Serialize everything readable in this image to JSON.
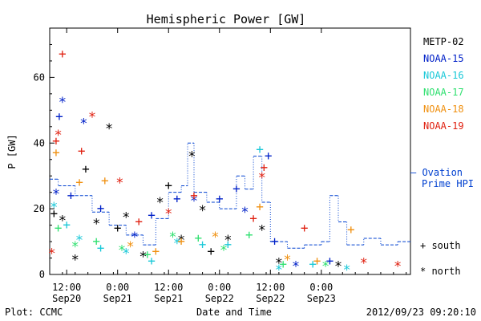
{
  "chart_data": {
    "type": "scatter",
    "title": "Hemispheric Power [GW]",
    "ylabel": "P [GW]",
    "xlabel": "Date and Time",
    "ylim": [
      0,
      75
    ],
    "x_start": "2012-09-20 08:00",
    "x_end": "2012-09-23 21:00",
    "grid": false,
    "legend_position": "right",
    "y_ticks": [
      0,
      20,
      40,
      60
    ],
    "x_ticks": [
      {
        "time": "2012-09-20 12:00",
        "line1": "12:00",
        "line2": "Sep20"
      },
      {
        "time": "2012-09-21 00:00",
        "line1": "0:00",
        "line2": "Sep21"
      },
      {
        "time": "2012-09-21 12:00",
        "line1": "12:00",
        "line2": "Sep21"
      },
      {
        "time": "2012-09-22 00:00",
        "line1": "0:00",
        "line2": "Sep22"
      },
      {
        "time": "2012-09-22 12:00",
        "line1": "12:00",
        "line2": "Sep22"
      },
      {
        "time": "2012-09-23 00:00",
        "line1": "0:00",
        "line2": "Sep23"
      }
    ],
    "footer_left": "Plot: CCMC",
    "footer_right": "2012/09/23 09:20:10",
    "marker_legend": {
      "south": "+ south",
      "north": "* north"
    },
    "ovation_label_1": "– Ovation",
    "ovation_label_2": "Prime HPI",
    "series": [
      {
        "name": "METP-02",
        "color": "#000000",
        "points": [
          {
            "x": "2012-09-20 09:00",
            "y": 18.5,
            "m": "+"
          },
          {
            "x": "2012-09-20 11:00",
            "y": 17,
            "m": "*"
          },
          {
            "x": "2012-09-20 14:00",
            "y": 5,
            "m": "*"
          },
          {
            "x": "2012-09-20 16:30",
            "y": 32,
            "m": "+"
          },
          {
            "x": "2012-09-20 19:00",
            "y": 16,
            "m": "*"
          },
          {
            "x": "2012-09-20 22:00",
            "y": 45,
            "m": "*"
          },
          {
            "x": "2012-09-21 00:00",
            "y": 14,
            "m": "+"
          },
          {
            "x": "2012-09-21 02:00",
            "y": 18,
            "m": "*"
          },
          {
            "x": "2012-09-21 06:00",
            "y": 6,
            "m": "*"
          },
          {
            "x": "2012-09-21 10:00",
            "y": 22.5,
            "m": "*"
          },
          {
            "x": "2012-09-21 12:00",
            "y": 27,
            "m": "+"
          },
          {
            "x": "2012-09-21 15:00",
            "y": 11,
            "m": "*"
          },
          {
            "x": "2012-09-21 17:30",
            "y": 36.5,
            "m": "*"
          },
          {
            "x": "2012-09-21 20:00",
            "y": 20,
            "m": "*"
          },
          {
            "x": "2012-09-21 22:00",
            "y": 7,
            "m": "+"
          },
          {
            "x": "2012-09-22 02:00",
            "y": 11,
            "m": "*"
          },
          {
            "x": "2012-09-22 10:00",
            "y": 14,
            "m": "*"
          },
          {
            "x": "2012-09-22 14:00",
            "y": 4,
            "m": "*"
          },
          {
            "x": "2012-09-23 04:00",
            "y": 3,
            "m": "*"
          }
        ]
      },
      {
        "name": "NOAA-15",
        "color": "#0020c8",
        "points": [
          {
            "x": "2012-09-20 09:30",
            "y": 25,
            "m": "*"
          },
          {
            "x": "2012-09-20 10:15",
            "y": 48,
            "m": "+"
          },
          {
            "x": "2012-09-20 11:00",
            "y": 53,
            "m": "*"
          },
          {
            "x": "2012-09-20 13:00",
            "y": 24,
            "m": "+"
          },
          {
            "x": "2012-09-20 16:00",
            "y": 46.5,
            "m": "*"
          },
          {
            "x": "2012-09-20 20:00",
            "y": 20,
            "m": "+"
          },
          {
            "x": "2012-09-21 04:00",
            "y": 12,
            "m": "*"
          },
          {
            "x": "2012-09-21 08:00",
            "y": 18,
            "m": "+"
          },
          {
            "x": "2012-09-21 14:00",
            "y": 23,
            "m": "+"
          },
          {
            "x": "2012-09-21 18:00",
            "y": 23,
            "m": "*"
          },
          {
            "x": "2012-09-22 00:00",
            "y": 23,
            "m": "+"
          },
          {
            "x": "2012-09-22 04:00",
            "y": 26,
            "m": "+"
          },
          {
            "x": "2012-09-22 06:00",
            "y": 19.5,
            "m": "*"
          },
          {
            "x": "2012-09-22 11:30",
            "y": 36,
            "m": "+"
          },
          {
            "x": "2012-09-22 13:00",
            "y": 10,
            "m": "+"
          },
          {
            "x": "2012-09-22 18:00",
            "y": 3,
            "m": "*"
          },
          {
            "x": "2012-09-23 02:00",
            "y": 4,
            "m": "+"
          }
        ]
      },
      {
        "name": "NOAA-16",
        "color": "#18c8d8",
        "points": [
          {
            "x": "2012-09-20 09:00",
            "y": 21,
            "m": "*"
          },
          {
            "x": "2012-09-20 12:00",
            "y": 15,
            "m": "+"
          },
          {
            "x": "2012-09-20 15:00",
            "y": 11,
            "m": "*"
          },
          {
            "x": "2012-09-20 20:00",
            "y": 8,
            "m": "+"
          },
          {
            "x": "2012-09-21 02:00",
            "y": 7,
            "m": "*"
          },
          {
            "x": "2012-09-21 08:00",
            "y": 4,
            "m": "+"
          },
          {
            "x": "2012-09-21 14:00",
            "y": 10,
            "m": "*"
          },
          {
            "x": "2012-09-21 20:00",
            "y": 9,
            "m": "+"
          },
          {
            "x": "2012-09-22 02:00",
            "y": 9,
            "m": "+"
          },
          {
            "x": "2012-09-22 09:30",
            "y": 38,
            "m": "+"
          },
          {
            "x": "2012-09-22 14:00",
            "y": 2,
            "m": "*"
          },
          {
            "x": "2012-09-22 22:00",
            "y": 3,
            "m": "+"
          },
          {
            "x": "2012-09-23 06:00",
            "y": 2,
            "m": "*"
          }
        ]
      },
      {
        "name": "NOAA-17",
        "color": "#30e070",
        "points": [
          {
            "x": "2012-09-20 10:00",
            "y": 14,
            "m": "+"
          },
          {
            "x": "2012-09-20 14:00",
            "y": 9,
            "m": "*"
          },
          {
            "x": "2012-09-20 19:00",
            "y": 10,
            "m": "+"
          },
          {
            "x": "2012-09-21 01:00",
            "y": 8,
            "m": "*"
          },
          {
            "x": "2012-09-21 07:00",
            "y": 6,
            "m": "+"
          },
          {
            "x": "2012-09-21 13:00",
            "y": 12,
            "m": "*"
          },
          {
            "x": "2012-09-21 19:00",
            "y": 11,
            "m": "+"
          },
          {
            "x": "2012-09-22 01:00",
            "y": 8,
            "m": "*"
          },
          {
            "x": "2012-09-22 07:00",
            "y": 12,
            "m": "+"
          },
          {
            "x": "2012-09-22 15:00",
            "y": 3,
            "m": "+"
          },
          {
            "x": "2012-09-23 01:00",
            "y": 3,
            "m": "*"
          }
        ]
      },
      {
        "name": "NOAA-18",
        "color": "#f09010",
        "points": [
          {
            "x": "2012-09-20 09:30",
            "y": 37,
            "m": "+"
          },
          {
            "x": "2012-09-20 15:00",
            "y": 28,
            "m": "+"
          },
          {
            "x": "2012-09-20 21:00",
            "y": 28.5,
            "m": "+"
          },
          {
            "x": "2012-09-21 03:00",
            "y": 9,
            "m": "*"
          },
          {
            "x": "2012-09-21 09:00",
            "y": 7,
            "m": "+"
          },
          {
            "x": "2012-09-21 15:00",
            "y": 10,
            "m": "+"
          },
          {
            "x": "2012-09-21 23:00",
            "y": 12,
            "m": "*"
          },
          {
            "x": "2012-09-22 09:30",
            "y": 20.5,
            "m": "+"
          },
          {
            "x": "2012-09-22 16:00",
            "y": 5,
            "m": "*"
          },
          {
            "x": "2012-09-22 23:00",
            "y": 4,
            "m": "+"
          },
          {
            "x": "2012-09-23 07:00",
            "y": 13.5,
            "m": "+"
          }
        ]
      },
      {
        "name": "NOAA-19",
        "color": "#e02010",
        "points": [
          {
            "x": "2012-09-20 08:30",
            "y": 7,
            "m": "*"
          },
          {
            "x": "2012-09-20 09:30",
            "y": 40.5,
            "m": "+"
          },
          {
            "x": "2012-09-20 10:00",
            "y": 43,
            "m": "*"
          },
          {
            "x": "2012-09-20 11:00",
            "y": 67,
            "m": "+"
          },
          {
            "x": "2012-09-20 15:30",
            "y": 37.5,
            "m": "+"
          },
          {
            "x": "2012-09-20 18:00",
            "y": 48.5,
            "m": "*"
          },
          {
            "x": "2012-09-21 00:30",
            "y": 28.5,
            "m": "*"
          },
          {
            "x": "2012-09-21 05:00",
            "y": 16,
            "m": "+"
          },
          {
            "x": "2012-09-21 12:00",
            "y": 19,
            "m": "*"
          },
          {
            "x": "2012-09-21 18:00",
            "y": 24,
            "m": "+"
          },
          {
            "x": "2012-09-22 08:00",
            "y": 17,
            "m": "+"
          },
          {
            "x": "2012-09-22 10:00",
            "y": 30,
            "m": "*"
          },
          {
            "x": "2012-09-22 10:30",
            "y": 32.5,
            "m": "+"
          },
          {
            "x": "2012-09-22 20:00",
            "y": 14,
            "m": "+"
          },
          {
            "x": "2012-09-23 10:00",
            "y": 4,
            "m": "*"
          },
          {
            "x": "2012-09-23 18:00",
            "y": 3,
            "m": "*"
          }
        ]
      }
    ],
    "ovation": {
      "name": "Ovation Prime HPI",
      "color": "#0040d0",
      "points": [
        {
          "x": "2012-09-20 08:00",
          "y": 29
        },
        {
          "x": "2012-09-20 10:00",
          "y": 27
        },
        {
          "x": "2012-09-20 14:00",
          "y": 24
        },
        {
          "x": "2012-09-20 18:00",
          "y": 19
        },
        {
          "x": "2012-09-20 22:00",
          "y": 15
        },
        {
          "x": "2012-09-21 02:00",
          "y": 12
        },
        {
          "x": "2012-09-21 06:00",
          "y": 9
        },
        {
          "x": "2012-09-21 09:00",
          "y": 17
        },
        {
          "x": "2012-09-21 12:00",
          "y": 25
        },
        {
          "x": "2012-09-21 15:00",
          "y": 27
        },
        {
          "x": "2012-09-21 16:30",
          "y": 40
        },
        {
          "x": "2012-09-21 18:00",
          "y": 25
        },
        {
          "x": "2012-09-21 21:00",
          "y": 22
        },
        {
          "x": "2012-09-22 00:00",
          "y": 20
        },
        {
          "x": "2012-09-22 04:00",
          "y": 30
        },
        {
          "x": "2012-09-22 06:00",
          "y": 26
        },
        {
          "x": "2012-09-22 08:00",
          "y": 36
        },
        {
          "x": "2012-09-22 10:00",
          "y": 22
        },
        {
          "x": "2012-09-22 12:00",
          "y": 10
        },
        {
          "x": "2012-09-22 16:00",
          "y": 8
        },
        {
          "x": "2012-09-22 20:00",
          "y": 9
        },
        {
          "x": "2012-09-23 00:00",
          "y": 10
        },
        {
          "x": "2012-09-23 02:00",
          "y": 24
        },
        {
          "x": "2012-09-23 04:00",
          "y": 16
        },
        {
          "x": "2012-09-23 06:00",
          "y": 9
        },
        {
          "x": "2012-09-23 10:00",
          "y": 11
        },
        {
          "x": "2012-09-23 14:00",
          "y": 9
        },
        {
          "x": "2012-09-23 18:00",
          "y": 10
        },
        {
          "x": "2012-09-23 21:00",
          "y": 10
        }
      ]
    }
  }
}
